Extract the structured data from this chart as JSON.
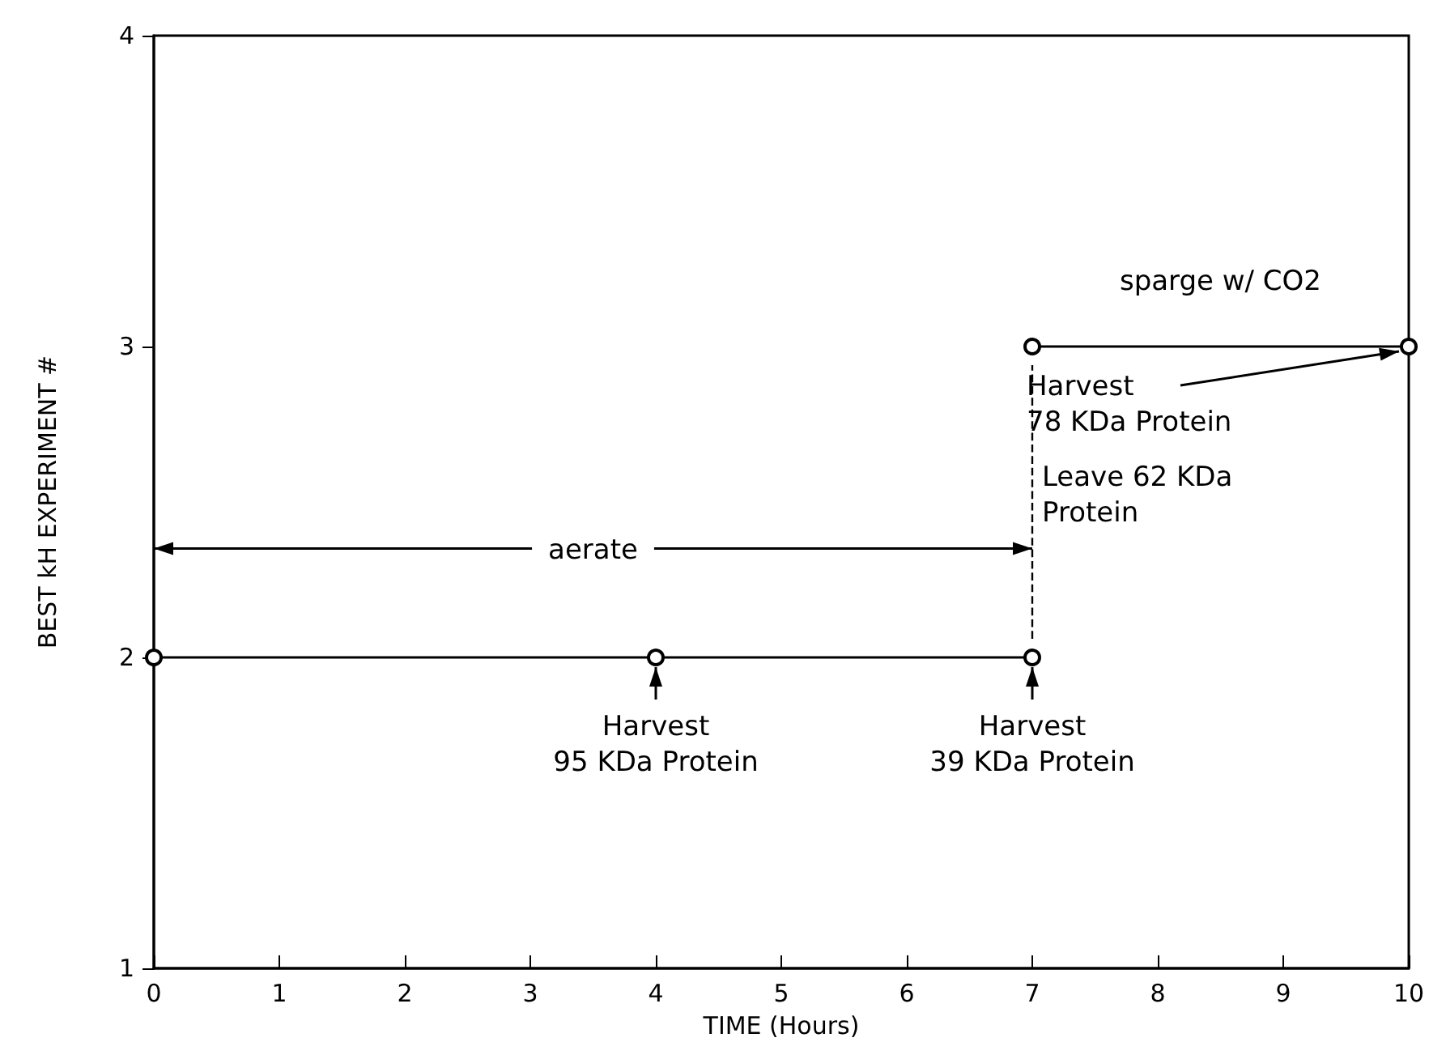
{
  "chart_data": {
    "type": "line",
    "xlabel": "TIME (Hours)",
    "ylabel": "BEST kH EXPERIMENT #",
    "xlim": [
      0,
      10
    ],
    "xticks": [
      0,
      1,
      2,
      3,
      4,
      5,
      6,
      7,
      8,
      9,
      10
    ],
    "ylim": [
      1,
      4
    ],
    "yticks": [
      1,
      2,
      3,
      4
    ],
    "series": [
      {
        "color": "#000000",
        "x": [
          0,
          4,
          7
        ],
        "values": [
          2,
          2,
          2
        ]
      },
      {
        "color": "#000000",
        "x": [
          7,
          10
        ],
        "values": [
          3,
          3
        ]
      }
    ],
    "marker": "circle",
    "line_style": "solid",
    "grid": false,
    "ref_lines": [
      {
        "axis": "x",
        "value": 7,
        "line_style": "dashed",
        "color": "#000000"
      }
    ],
    "annotations": [
      {
        "text": "aerate",
        "x": 7,
        "y": 2.35
      },
      {
        "text": "Harvest\n95 KDa Protein",
        "x": 4,
        "y": 2
      },
      {
        "text": "Harvest\n39 KDa Protein",
        "x": 7,
        "y": 2
      },
      {
        "text": "sparge w/ CO2",
        "x": 8.5,
        "y": 3
      },
      {
        "text": "Harvest\n78 KDa Protein",
        "x": 10,
        "y": 3
      },
      {
        "text": "Leave 62 KDa\nProtein",
        "x": 7,
        "y": 2.5
      }
    ]
  }
}
